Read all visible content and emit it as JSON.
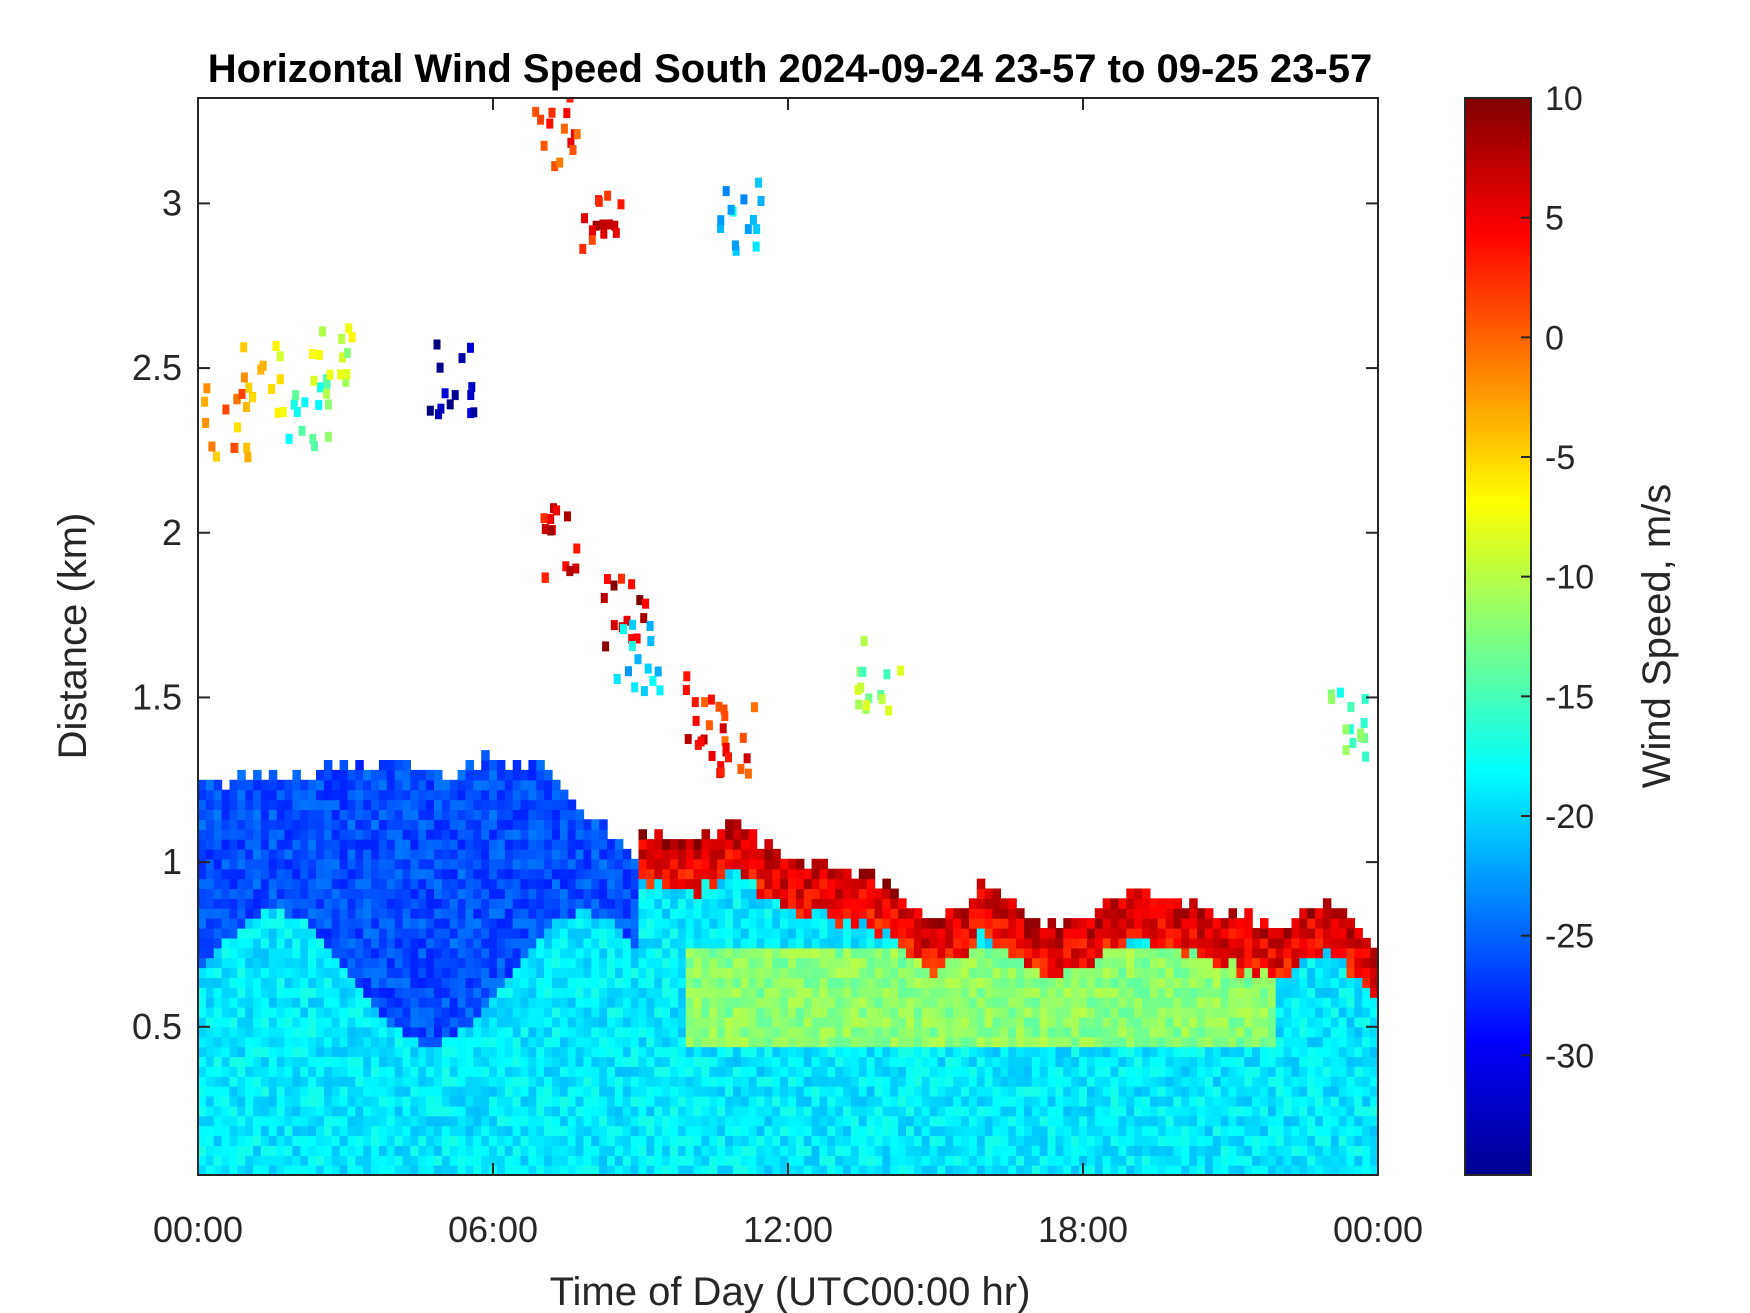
{
  "chart_data": {
    "type": "heatmap",
    "title": "Horizontal Wind Speed South 2024-09-24 23-57 to 09-25 23-57",
    "xlabel": "Time of Day (UTC00:00 hr)",
    "ylabel": "Distance (km)",
    "x_ticks": [
      "00:00",
      "06:00",
      "12:00",
      "18:00",
      "00:00"
    ],
    "x_tick_hours": [
      0,
      6,
      12,
      18,
      24
    ],
    "xlim_hours": [
      0,
      24
    ],
    "y_ticks": [
      "0.5",
      "1",
      "1.5",
      "2",
      "2.5",
      "3"
    ],
    "y_tick_values": [
      0.5,
      1,
      1.5,
      2,
      2.5,
      3
    ],
    "ylim": [
      0.05,
      3.32
    ],
    "colorbar": {
      "label": "Wind Speed, m/s",
      "ticks": [
        "10",
        "5",
        "0",
        "-5",
        "-10",
        "-15",
        "-20",
        "-25",
        "-30"
      ],
      "tick_values": [
        10,
        5,
        0,
        -5,
        -10,
        -15,
        -20,
        -25,
        -30
      ],
      "range": [
        -35,
        10
      ],
      "colormap": "jet"
    },
    "layers": [
      {
        "name": "blue aloft regime",
        "t_start": 0,
        "t_end": 9,
        "top_km": [
          [
            0,
            1.22
          ],
          [
            1,
            1.25
          ],
          [
            2,
            1.25
          ],
          [
            3,
            1.28
          ],
          [
            4,
            1.3
          ],
          [
            5,
            1.25
          ],
          [
            6,
            1.3
          ],
          [
            7,
            1.28
          ],
          [
            8,
            1.12
          ],
          [
            9,
            1.0
          ]
        ],
        "speed": -26
      },
      {
        "name": "upper boundary jet",
        "t_start": 9,
        "t_end": 24,
        "top_km": [
          [
            9,
            1.07
          ],
          [
            10,
            1.05
          ],
          [
            11,
            1.1
          ],
          [
            12,
            1.0
          ],
          [
            13,
            0.97
          ],
          [
            14,
            0.92
          ],
          [
            15,
            0.8
          ],
          [
            16,
            0.93
          ],
          [
            17,
            0.8
          ],
          [
            18,
            0.82
          ],
          [
            19,
            0.92
          ],
          [
            20,
            0.87
          ],
          [
            21,
            0.82
          ],
          [
            22,
            0.8
          ],
          [
            23,
            0.88
          ],
          [
            24,
            0.72
          ]
        ],
        "speed": 7
      }
    ],
    "near_surface_speed": -19,
    "scattered_echoes": [
      {
        "t_hours": 0.5,
        "km": 2.32,
        "speed": -2
      },
      {
        "t_hours": 1.3,
        "km": 2.45,
        "speed": -5
      },
      {
        "t_hours": 2.2,
        "km": 2.35,
        "speed": -15
      },
      {
        "t_hours": 2.7,
        "km": 2.5,
        "speed": -10
      },
      {
        "t_hours": 5.1,
        "km": 2.45,
        "speed": -32
      },
      {
        "t_hours": 7.3,
        "km": 1.95,
        "speed": 5
      },
      {
        "t_hours": 8.6,
        "km": 1.75,
        "speed": 6
      },
      {
        "t_hours": 8.9,
        "km": 1.6,
        "speed": -20
      },
      {
        "t_hours": 10.2,
        "km": 1.45,
        "speed": 4
      },
      {
        "t_hours": 10.8,
        "km": 1.35,
        "speed": 3
      },
      {
        "t_hours": 13.8,
        "km": 1.55,
        "speed": -12
      },
      {
        "t_hours": 7.2,
        "km": 3.2,
        "speed": 2
      },
      {
        "t_hours": 8.2,
        "km": 2.9,
        "speed": 5
      },
      {
        "t_hours": 11.0,
        "km": 2.95,
        "speed": -20
      },
      {
        "t_hours": 23.3,
        "km": 1.4,
        "speed": -15
      }
    ]
  }
}
